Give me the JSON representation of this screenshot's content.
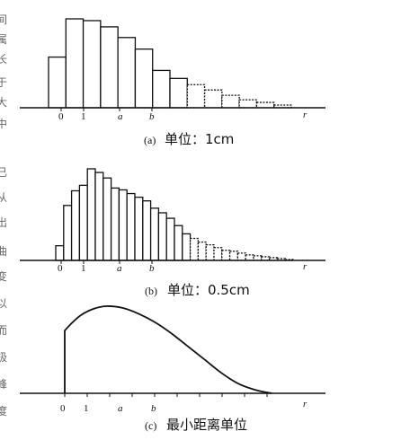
{
  "chart_data": [
    {
      "type": "bar",
      "panel": "a",
      "caption": {
        "letter": "(a)",
        "text": "单位：1cm"
      },
      "x_ticks": [
        "0",
        "1",
        "a",
        "b",
        "r"
      ],
      "values": [
        0.57,
        1.0,
        0.98,
        0.91,
        0.79,
        0.66,
        0.42,
        0.33,
        0.26,
        0.2,
        0.14,
        0.09,
        0.06,
        0.03
      ]
    },
    {
      "type": "bar",
      "panel": "b",
      "caption": {
        "letter": "(b)",
        "text": "单位：0.5cm"
      },
      "x_ticks": [
        "0",
        "1",
        "a",
        "b",
        "r"
      ],
      "values": [
        0.16,
        0.6,
        0.76,
        0.82,
        1.0,
        0.96,
        0.9,
        0.79,
        0.77,
        0.73,
        0.69,
        0.65,
        0.57,
        0.52,
        0.46,
        0.38,
        0.29,
        0.24,
        0.2,
        0.17,
        0.14,
        0.11,
        0.1,
        0.08,
        0.06,
        0.05,
        0.04,
        0.03,
        0.02,
        0.01
      ]
    },
    {
      "type": "area",
      "panel": "c",
      "caption": {
        "letter": "(c)",
        "text": "最小距离单位"
      },
      "x_ticks": [
        "0",
        "1",
        "a",
        "b",
        "r"
      ],
      "curve": [
        {
          "x": 0.0,
          "y": 0.72
        },
        {
          "x": 0.04,
          "y": 0.82
        },
        {
          "x": 0.08,
          "y": 0.9
        },
        {
          "x": 0.14,
          "y": 0.97
        },
        {
          "x": 0.2,
          "y": 1.0
        },
        {
          "x": 0.28,
          "y": 0.98
        },
        {
          "x": 0.36,
          "y": 0.91
        },
        {
          "x": 0.44,
          "y": 0.81
        },
        {
          "x": 0.52,
          "y": 0.68
        },
        {
          "x": 0.6,
          "y": 0.53
        },
        {
          "x": 0.68,
          "y": 0.38
        },
        {
          "x": 0.76,
          "y": 0.23
        },
        {
          "x": 0.84,
          "y": 0.11
        },
        {
          "x": 0.92,
          "y": 0.04
        },
        {
          "x": 1.0,
          "y": 0.0
        }
      ]
    }
  ],
  "left_margin_glyphs": [
    "间",
    "属",
    "长",
    "于",
    "大",
    "中",
    "已",
    "从",
    "出",
    "曲",
    "变",
    "以",
    "而",
    "极",
    "峰",
    "度"
  ]
}
